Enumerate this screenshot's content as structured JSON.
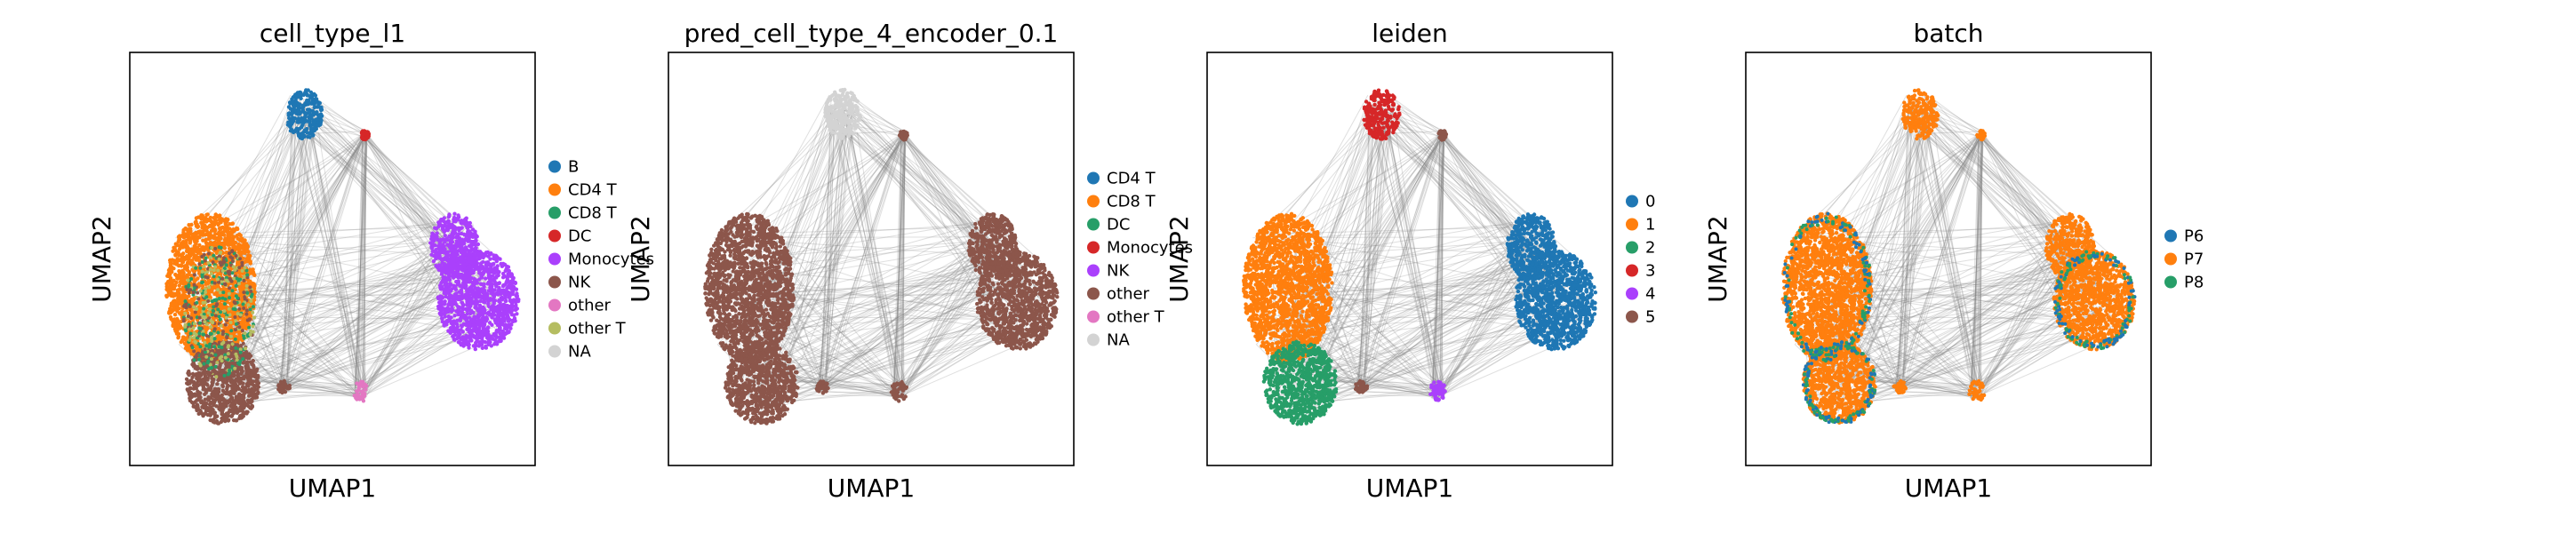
{
  "figure": {
    "background": "#ffffff"
  },
  "chart_data": [
    {
      "type": "scatter",
      "title": "cell_type_l1",
      "xlabel": "UMAP1",
      "ylabel": "UMAP2",
      "grid": false,
      "ticks": false,
      "legend_position": "right",
      "categories": [
        "B",
        "CD4 T",
        "CD8 T",
        "DC",
        "Monocytes",
        "NK",
        "other",
        "other T",
        "NA"
      ],
      "colors": [
        "#1f77b4",
        "#ff7f0e",
        "#279e68",
        "#d62728",
        "#aa40fc",
        "#8c564b",
        "#e377c2",
        "#b5bd61",
        "#d3d3d3"
      ],
      "cluster_colors": {
        "top": "#1f77b4",
        "left": "#ff7f0e",
        "leftlow": "#8c564b",
        "right": "#aa40fc",
        "rightlow": "#aa40fc",
        "bottom": "#e377c2",
        "topright": "#d62728",
        "mid": "#8c564b"
      }
    },
    {
      "type": "scatter",
      "title": "pred_cell_type_4_encoder_0.1",
      "xlabel": "UMAP1",
      "ylabel": "UMAP2",
      "grid": false,
      "ticks": false,
      "legend_position": "right",
      "categories": [
        "CD4 T",
        "CD8 T",
        "DC",
        "Monocytes",
        "NK",
        "other",
        "other T",
        "NA"
      ],
      "colors": [
        "#1f77b4",
        "#ff7f0e",
        "#279e68",
        "#d62728",
        "#aa40fc",
        "#8c564b",
        "#e377c2",
        "#d3d3d3"
      ],
      "cluster_colors": {
        "top": "#d3d3d3",
        "left": "#8c564b",
        "leftlow": "#8c564b",
        "right": "#8c564b",
        "rightlow": "#8c564b",
        "bottom": "#8c564b",
        "topright": "#8c564b",
        "mid": "#8c564b"
      }
    },
    {
      "type": "scatter",
      "title": "leiden",
      "xlabel": "UMAP1",
      "ylabel": "UMAP2",
      "grid": false,
      "ticks": false,
      "legend_position": "right",
      "categories": [
        "0",
        "1",
        "2",
        "3",
        "4",
        "5"
      ],
      "colors": [
        "#1f77b4",
        "#ff7f0e",
        "#279e68",
        "#d62728",
        "#aa40fc",
        "#8c564b"
      ],
      "cluster_colors": {
        "top": "#d62728",
        "left": "#ff7f0e",
        "leftlow": "#279e68",
        "right": "#1f77b4",
        "rightlow": "#1f77b4",
        "bottom": "#aa40fc",
        "topright": "#8c564b",
        "mid": "#8c564b"
      }
    },
    {
      "type": "scatter",
      "title": "batch",
      "xlabel": "UMAP1",
      "ylabel": "UMAP2",
      "grid": false,
      "ticks": false,
      "legend_position": "right",
      "categories": [
        "P6",
        "P7",
        "P8"
      ],
      "colors": [
        "#1f77b4",
        "#ff7f0e",
        "#279e68"
      ],
      "cluster_colors": {
        "top": "#ff7f0e",
        "left": "#ff7f0e",
        "leftlow": "#ff7f0e",
        "right": "#ff7f0e",
        "rightlow": "#ff7f0e",
        "bottom": "#ff7f0e",
        "topright": "#ff7f0e",
        "mid": "#ff7f0e"
      }
    }
  ]
}
